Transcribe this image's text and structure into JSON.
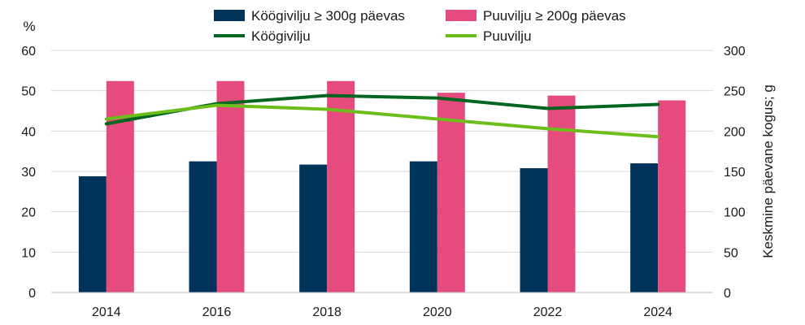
{
  "chart_data": {
    "type": "bar",
    "categories": [
      "2014",
      "2016",
      "2018",
      "2020",
      "2022",
      "2024"
    ],
    "bar_series": [
      {
        "name": "Köögivilju ≥ 300g päevas",
        "color": "#003359",
        "values": [
          28.8,
          32.5,
          31.7,
          32.5,
          30.8,
          32.0
        ]
      },
      {
        "name": "Puuvilju ≥ 200g päevas",
        "color": "#E54B7C",
        "values": [
          52.4,
          52.4,
          52.4,
          49.5,
          48.8,
          47.6
        ]
      }
    ],
    "line_series": [
      {
        "name": "Köögivilju",
        "color": "#00651F",
        "values": [
          209,
          234,
          244,
          241,
          228,
          233
        ]
      },
      {
        "name": "Puuvilju",
        "color": "#6CBE1A",
        "values": [
          215,
          232,
          227,
          215,
          203,
          193
        ]
      }
    ],
    "y_left": {
      "label": "%",
      "ylim": [
        0,
        60
      ],
      "ticks": [
        0,
        10,
        20,
        30,
        40,
        50,
        60
      ]
    },
    "y_right": {
      "label": "Keskmine päevane kogus; g",
      "ylim": [
        0,
        300
      ],
      "ticks": [
        0,
        50,
        100,
        150,
        200,
        250,
        300
      ]
    },
    "legend_position": "top"
  }
}
